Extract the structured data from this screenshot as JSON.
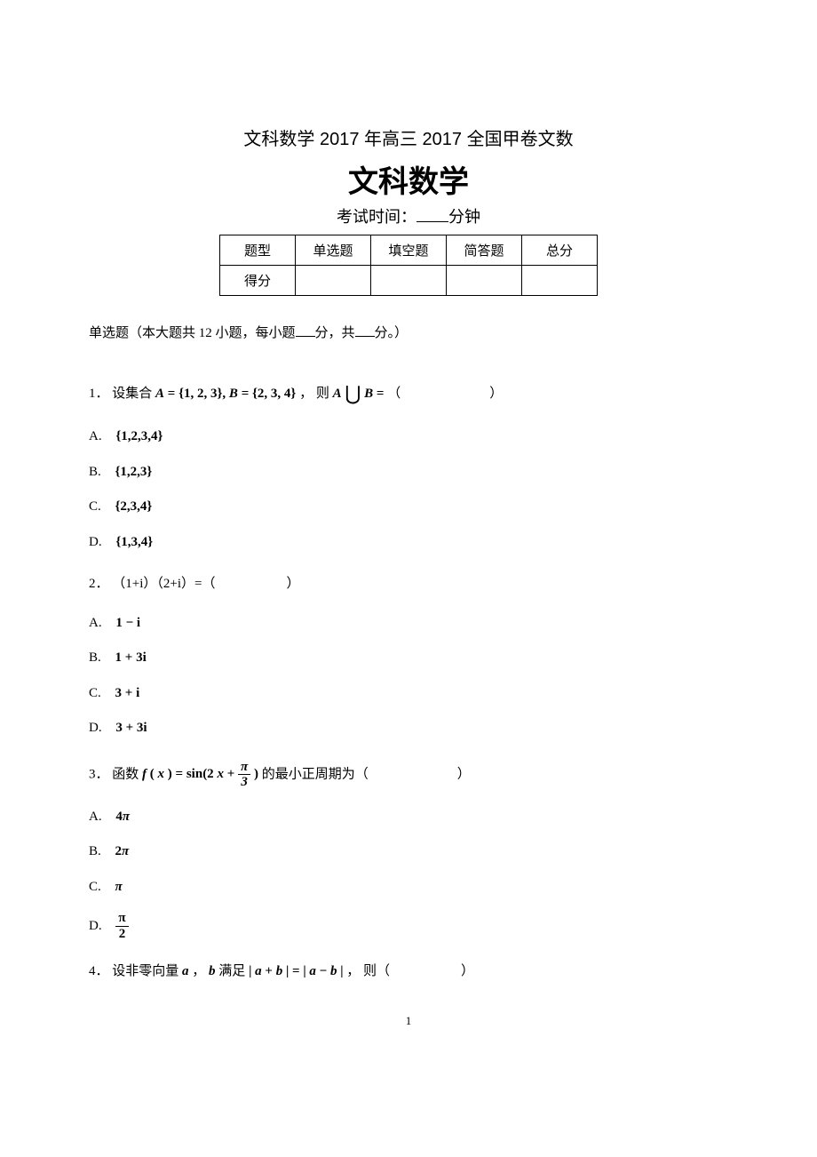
{
  "header": {
    "title_line": "文科数学 2017 年高三 2017 全国甲卷文数",
    "main_title": "文科数学",
    "exam_time_prefix": "考试时间：",
    "exam_time_suffix": "分钟"
  },
  "score_table": {
    "row1": [
      "题型",
      "单选题",
      "填空题",
      "简答题",
      "总分"
    ],
    "row2": [
      "得分",
      "",
      "",
      "",
      ""
    ]
  },
  "section_intro": {
    "prefix": "单选题（本大题共 12 小题，每小题",
    "mid": "分，共",
    "suffix": "分。）"
  },
  "questions": {
    "q1": {
      "num": "1．",
      "prefix": "设集合 ",
      "setA": "A",
      "eq1": " = {1, 2, 3}, ",
      "setB": "B",
      "eq2": " = {2, 3, 4}",
      "text_mid": "， 则 ",
      "expr_A": "A",
      "cup": "⋃",
      "expr_B": "B",
      "expr_eq": " = ",
      "paren_open": "（",
      "paren_close": "）",
      "options": [
        {
          "label": "A.",
          "value": "{1,2,3,4}"
        },
        {
          "label": "B.",
          "value": "{1,2,3}"
        },
        {
          "label": "C.",
          "value": "{2,3,4}"
        },
        {
          "label": "D.",
          "value": "{1,3,4}"
        }
      ]
    },
    "q2": {
      "num": "2．",
      "text": "（1+i）（2+i）=（",
      "paren_close": "）",
      "options": [
        {
          "label": "A.",
          "value_a": "1",
          "value_op": "−",
          "value_b": "i"
        },
        {
          "label": "B.",
          "value_a": "1",
          "value_op": "+",
          "value_b": "3i"
        },
        {
          "label": "C.",
          "value_a": "3",
          "value_op": "+",
          "value_b": "i"
        },
        {
          "label": "D.",
          "value_a": "3",
          "value_op": "+",
          "value_b": "3i"
        }
      ]
    },
    "q3": {
      "num": "3．",
      "prefix": "函数 ",
      "func": "f",
      "paren_x_open": "(",
      "var_x": "x",
      "paren_x_close": ")",
      "eq": " = ",
      "sin": "sin(2",
      "var_x2": "x",
      "plus": " + ",
      "frac_num": "π",
      "frac_den": "3",
      "close": ")",
      "suffix": " 的最小正周期为（",
      "paren_close": "）",
      "options": [
        {
          "label": "A.",
          "coef": "4",
          "sym": "π"
        },
        {
          "label": "B.",
          "coef": "2",
          "sym": "π"
        },
        {
          "label": "C.",
          "coef": "",
          "sym": "π"
        },
        {
          "label": "D.",
          "frac_num": "π",
          "frac_den": "2"
        }
      ]
    },
    "q4": {
      "num": "4．",
      "prefix": "设非零向量 ",
      "a": "a",
      "comma": " ， ",
      "b": "b",
      "mid1": " 满足 ",
      "bar1": "|",
      "a2": "a",
      "plus": "+",
      "b2": "b",
      "bar2": "|",
      "eq": "=",
      "bar3": "|",
      "a3": "a",
      "minus": "−",
      "b3": "b",
      "bar4": "|",
      "suffix": " ， 则（",
      "paren_close": "）"
    }
  },
  "page_number": "1"
}
